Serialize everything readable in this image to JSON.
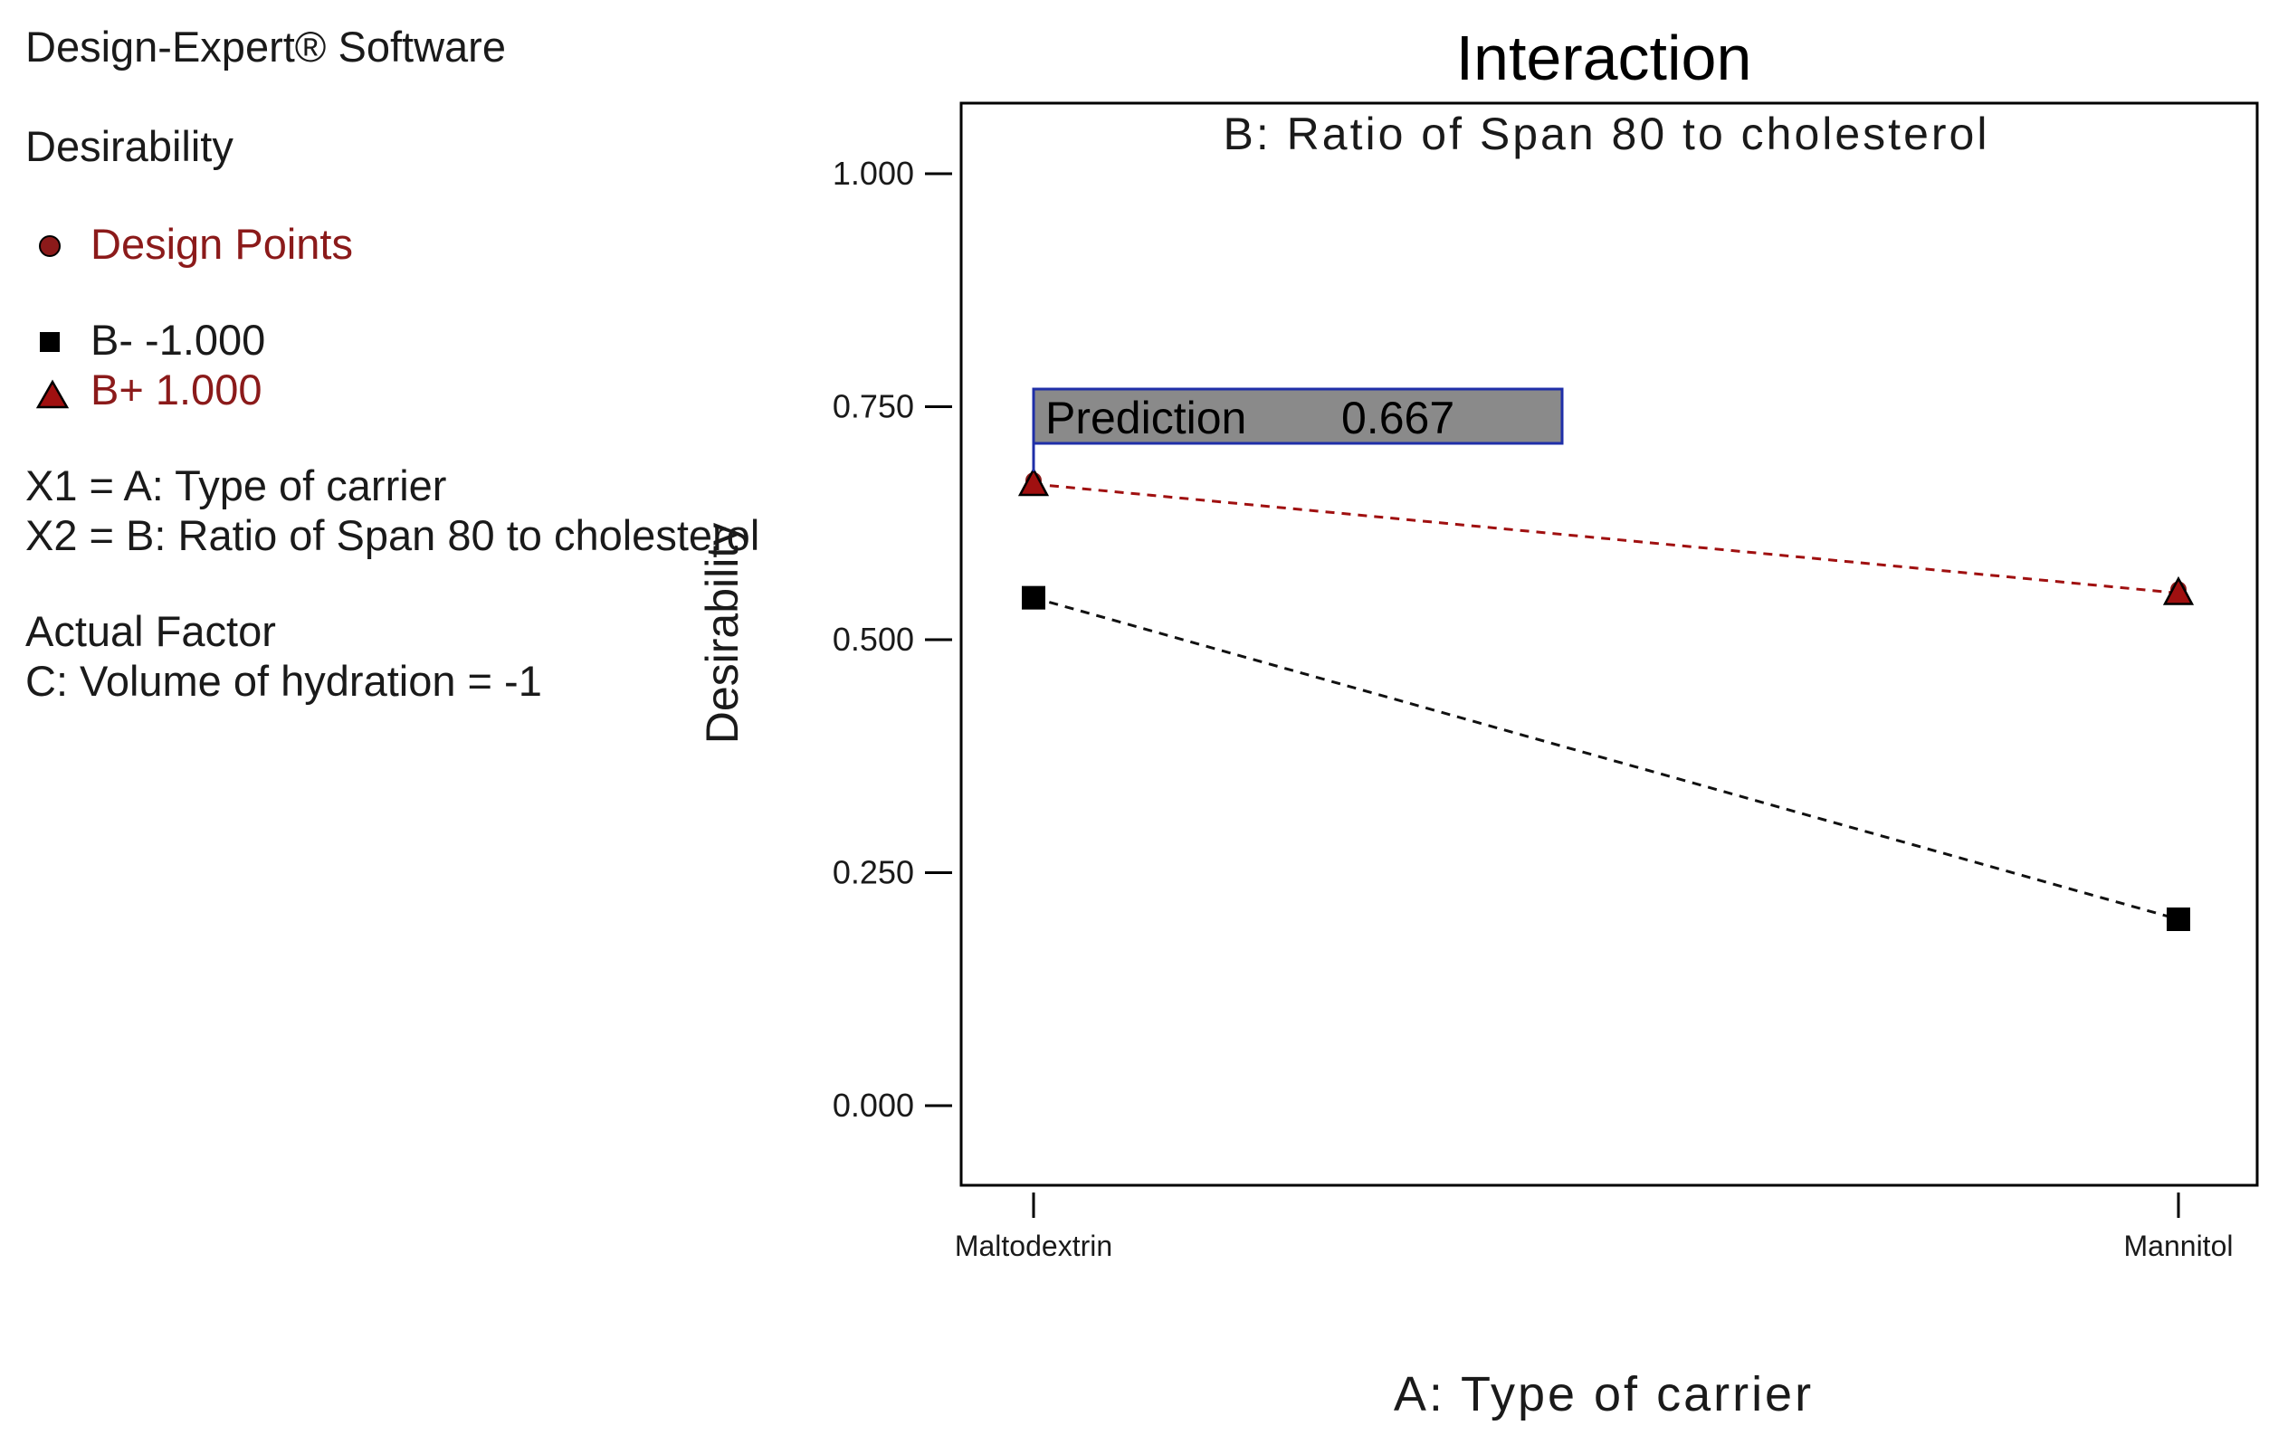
{
  "info_panel": {
    "software": "Design-Expert® Software",
    "response": "Desirability",
    "design_points_label": "Design Points",
    "legend_low": "B- -1.000",
    "legend_high": "B+ 1.000",
    "x1_def": "X1 = A: Type of carrier",
    "x2_def": "X2 = B: Ratio of Span 80 to cholesterol",
    "actual_factor_heading": "Actual Factor",
    "actual_factor_value": "C: Volume of hydration = -1"
  },
  "colors": {
    "high_series": "#a01010",
    "low_series": "#111111",
    "prediction_box_fill": "#8a8a8a",
    "prediction_box_border": "#1f2fa8",
    "design_point_marker": "#8b1a1a"
  },
  "prediction": {
    "label": "Prediction",
    "value": "0.667"
  },
  "chart_data": {
    "type": "line",
    "title": "Interaction",
    "subtitle": "B: Ratio of Span 80 to cholesterol",
    "xlabel": "A: Type of carrier",
    "ylabel": "Desirability",
    "categories": [
      "Maltodextrin",
      "Mannitol"
    ],
    "ylim": [
      -0.075,
      1.075
    ],
    "yticks": [
      0.0,
      0.25,
      0.5,
      0.75,
      1.0
    ],
    "ytick_labels": [
      "0.000",
      "0.250",
      "0.500",
      "0.750",
      "1.000"
    ],
    "series": [
      {
        "name": "B- -1.000",
        "values": [
          0.545,
          0.2
        ],
        "marker": "square",
        "line_style": "dashed"
      },
      {
        "name": "B+ 1.000",
        "values": [
          0.667,
          0.55
        ],
        "marker": "triangle",
        "line_style": "dashed"
      }
    ],
    "grid": false,
    "legend_position": "left-panel"
  }
}
